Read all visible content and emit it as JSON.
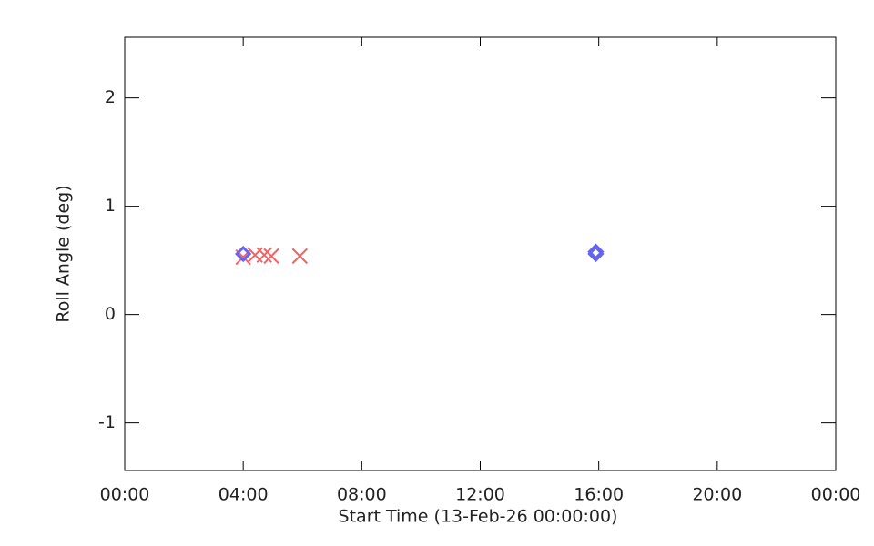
{
  "chart_data": {
    "type": "scatter",
    "xlabel": "Start Time (13-Feb-26 00:00:00)",
    "ylabel": "Roll Angle (deg)",
    "xlim": [
      0,
      24
    ],
    "xticks": [
      {
        "value": 0,
        "label": "00:00"
      },
      {
        "value": 4,
        "label": "04:00"
      },
      {
        "value": 8,
        "label": "08:00"
      },
      {
        "value": 12,
        "label": "12:00"
      },
      {
        "value": 16,
        "label": "16:00"
      },
      {
        "value": 20,
        "label": "20:00"
      },
      {
        "value": 24,
        "label": "00:00"
      }
    ],
    "ylim": [
      -1.44,
      2.56
    ],
    "yticks": [
      -1,
      0,
      1,
      2
    ],
    "series": [
      {
        "color": "#f06464",
        "marker": "x",
        "x": [
          4.0,
          4.4,
          4.71,
          4.95,
          5.91
        ],
        "values": [
          0.53,
          0.55,
          0.55,
          0.54,
          0.54
        ]
      },
      {
        "color": "#6464f0",
        "marker": "diamond",
        "x": [
          4.0,
          15.9,
          15.9
        ],
        "values": [
          0.56,
          0.58,
          0.56
        ]
      }
    ]
  }
}
